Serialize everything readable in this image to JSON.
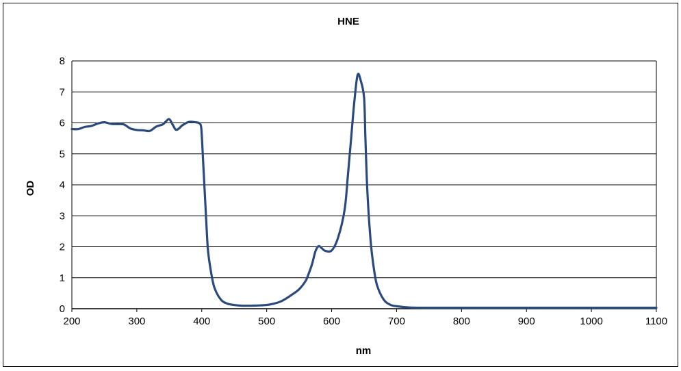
{
  "chart_data": {
    "type": "line",
    "title": "HNE",
    "xlabel": "nm",
    "ylabel": "OD",
    "xlim": [
      200,
      1100
    ],
    "ylim": [
      0,
      8
    ],
    "xticks": [
      "200",
      "300",
      "400",
      "500",
      "600",
      "700",
      "800",
      "900",
      "1000",
      "1100"
    ],
    "yticks": [
      "0",
      "1",
      "2",
      "3",
      "4",
      "5",
      "6",
      "7",
      "8"
    ],
    "grid": "horizontal",
    "legend": "none",
    "line_color": "#2a4a7f",
    "series": [
      {
        "x": [
          200,
          210,
          220,
          230,
          240,
          250,
          260,
          270,
          280,
          290,
          300,
          310,
          320,
          330,
          340,
          345,
          350,
          355,
          360,
          365,
          370,
          380,
          390,
          398,
          400,
          402,
          405,
          408,
          410,
          415,
          420,
          430,
          440,
          450,
          460,
          480,
          500,
          510,
          520,
          530,
          540,
          550,
          560,
          565,
          570,
          575,
          580,
          585,
          590,
          600,
          610,
          620,
          625,
          630,
          635,
          640,
          645,
          650,
          652,
          655,
          660,
          665,
          670,
          680,
          690,
          700,
          720,
          750,
          800,
          850,
          900,
          950,
          1000,
          1050,
          1100
        ],
        "y": [
          5.8,
          5.8,
          5.87,
          5.9,
          5.98,
          6.02,
          5.97,
          5.96,
          5.95,
          5.82,
          5.77,
          5.76,
          5.74,
          5.88,
          5.95,
          6.05,
          6.12,
          5.95,
          5.78,
          5.82,
          5.92,
          6.03,
          6.02,
          5.95,
          5.6,
          4.8,
          3.6,
          2.4,
          1.8,
          1.1,
          0.65,
          0.28,
          0.16,
          0.12,
          0.1,
          0.1,
          0.12,
          0.16,
          0.22,
          0.33,
          0.47,
          0.63,
          0.9,
          1.15,
          1.45,
          1.85,
          2.02,
          1.95,
          1.87,
          1.88,
          2.3,
          3.2,
          4.3,
          5.5,
          6.7,
          7.55,
          7.35,
          6.8,
          5.5,
          3.8,
          2.2,
          1.3,
          0.75,
          0.3,
          0.13,
          0.08,
          0.04,
          0.03,
          0.03,
          0.03,
          0.03,
          0.03,
          0.03,
          0.03,
          0.03
        ]
      }
    ]
  }
}
